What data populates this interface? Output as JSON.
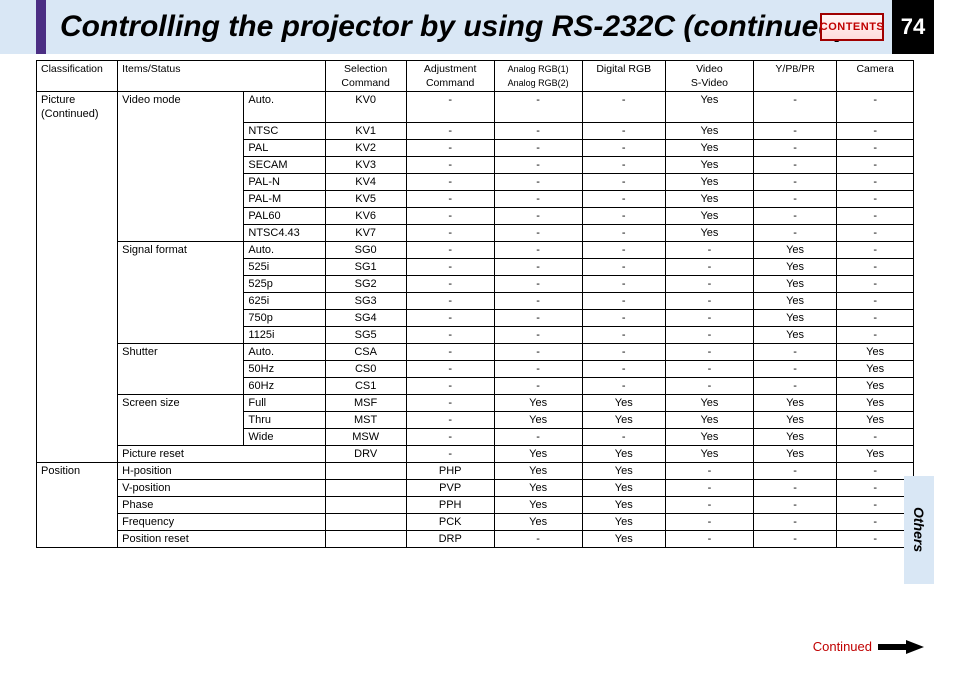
{
  "title": "Controlling the projector by using RS-232C (continued)",
  "contents_btn": "CONTENTS",
  "page_number": "74",
  "side_tab": "Others",
  "continued_label": "Continued",
  "headers": {
    "classification": "Classification",
    "items_status": "Items/Status",
    "selection": "Selection\nCommand",
    "adjustment": "Adjustment\nCommand",
    "analog_rgb": "Analog RGB(1)\nAnalog RGB(2)",
    "digital_rgb": "Digital RGB",
    "video": "Video\nS-Video",
    "ypbpr": "Y/PB/PR",
    "camera": "Camera"
  },
  "classifications": {
    "picture": "Picture\n(Continued)",
    "position": "Position"
  },
  "groups": [
    {
      "item": "Video mode",
      "rows": [
        {
          "status": "Auto.",
          "sel": "KV0",
          "adj": "-",
          "rgb1": "-",
          "drgb": "-",
          "vid": "Yes",
          "ypbpr": "-",
          "cam": "-"
        },
        {
          "status": "NTSC",
          "sel": "KV1",
          "adj": "-",
          "rgb1": "-",
          "drgb": "-",
          "vid": "Yes",
          "ypbpr": "-",
          "cam": "-"
        },
        {
          "status": "PAL",
          "sel": "KV2",
          "adj": "-",
          "rgb1": "-",
          "drgb": "-",
          "vid": "Yes",
          "ypbpr": "-",
          "cam": "-"
        },
        {
          "status": "SECAM",
          "sel": "KV3",
          "adj": "-",
          "rgb1": "-",
          "drgb": "-",
          "vid": "Yes",
          "ypbpr": "-",
          "cam": "-"
        },
        {
          "status": "PAL-N",
          "sel": "KV4",
          "adj": "-",
          "rgb1": "-",
          "drgb": "-",
          "vid": "Yes",
          "ypbpr": "-",
          "cam": "-"
        },
        {
          "status": "PAL-M",
          "sel": "KV5",
          "adj": "-",
          "rgb1": "-",
          "drgb": "-",
          "vid": "Yes",
          "ypbpr": "-",
          "cam": "-"
        },
        {
          "status": "PAL60",
          "sel": "KV6",
          "adj": "-",
          "rgb1": "-",
          "drgb": "-",
          "vid": "Yes",
          "ypbpr": "-",
          "cam": "-"
        },
        {
          "status": "NTSC4.43",
          "sel": "KV7",
          "adj": "-",
          "rgb1": "-",
          "drgb": "-",
          "vid": "Yes",
          "ypbpr": "-",
          "cam": "-"
        }
      ]
    },
    {
      "item": "Signal format",
      "rows": [
        {
          "status": "Auto.",
          "sel": "SG0",
          "adj": "-",
          "rgb1": "-",
          "drgb": "-",
          "vid": "-",
          "ypbpr": "Yes",
          "cam": "-"
        },
        {
          "status": "525i",
          "sel": "SG1",
          "adj": "-",
          "rgb1": "-",
          "drgb": "-",
          "vid": "-",
          "ypbpr": "Yes",
          "cam": "-"
        },
        {
          "status": "525p",
          "sel": "SG2",
          "adj": "-",
          "rgb1": "-",
          "drgb": "-",
          "vid": "-",
          "ypbpr": "Yes",
          "cam": "-"
        },
        {
          "status": "625i",
          "sel": "SG3",
          "adj": "-",
          "rgb1": "-",
          "drgb": "-",
          "vid": "-",
          "ypbpr": "Yes",
          "cam": "-"
        },
        {
          "status": "750p",
          "sel": "SG4",
          "adj": "-",
          "rgb1": "-",
          "drgb": "-",
          "vid": "-",
          "ypbpr": "Yes",
          "cam": "-"
        },
        {
          "status": "1125i",
          "sel": "SG5",
          "adj": "-",
          "rgb1": "-",
          "drgb": "-",
          "vid": "-",
          "ypbpr": "Yes",
          "cam": "-"
        }
      ]
    },
    {
      "item": "Shutter",
      "rows": [
        {
          "status": "Auto.",
          "sel": "CSA",
          "adj": "-",
          "rgb1": "-",
          "drgb": "-",
          "vid": "-",
          "ypbpr": "-",
          "cam": "Yes"
        },
        {
          "status": "50Hz",
          "sel": "CS0",
          "adj": "-",
          "rgb1": "-",
          "drgb": "-",
          "vid": "-",
          "ypbpr": "-",
          "cam": "Yes"
        },
        {
          "status": "60Hz",
          "sel": "CS1",
          "adj": "-",
          "rgb1": "-",
          "drgb": "-",
          "vid": "-",
          "ypbpr": "-",
          "cam": "Yes"
        }
      ]
    },
    {
      "item": "Screen size",
      "rows": [
        {
          "status": "Full",
          "sel": "MSF",
          "adj": "-",
          "rgb1": "Yes",
          "drgb": "Yes",
          "vid": "Yes",
          "ypbpr": "Yes",
          "cam": "Yes"
        },
        {
          "status": "Thru",
          "sel": "MST",
          "adj": "-",
          "rgb1": "Yes",
          "drgb": "Yes",
          "vid": "Yes",
          "ypbpr": "Yes",
          "cam": "Yes"
        },
        {
          "status": "Wide",
          "sel": "MSW",
          "adj": "-",
          "rgb1": "-",
          "drgb": "-",
          "vid": "Yes",
          "ypbpr": "Yes",
          "cam": "-"
        }
      ]
    },
    {
      "item": "Picture reset",
      "rows": [
        {
          "status": "",
          "sel": "DRV",
          "adj": "-",
          "rgb1": "Yes",
          "drgb": "Yes",
          "vid": "Yes",
          "ypbpr": "Yes",
          "cam": "Yes"
        }
      ]
    }
  ],
  "position_rows": [
    {
      "item": "H-position",
      "status": "",
      "sel": "",
      "adj": "PHP",
      "rgb1": "Yes",
      "drgb": "Yes",
      "vid": "-",
      "ypbpr": "-",
      "cam": "-",
      "extra": "-"
    },
    {
      "item": "V-position",
      "status": "",
      "sel": "",
      "adj": "PVP",
      "rgb1": "Yes",
      "drgb": "Yes",
      "vid": "-",
      "ypbpr": "-",
      "cam": "-",
      "extra": "-"
    },
    {
      "item": "Phase",
      "status": "",
      "sel": "",
      "adj": "PPH",
      "rgb1": "Yes",
      "drgb": "Yes",
      "vid": "-",
      "ypbpr": "-",
      "cam": "-",
      "extra": "-"
    },
    {
      "item": "Frequency",
      "status": "",
      "sel": "",
      "adj": "PCK",
      "rgb1": "Yes",
      "drgb": "Yes",
      "vid": "-",
      "ypbpr": "-",
      "cam": "-",
      "extra": "-"
    },
    {
      "item": "Position reset",
      "status": "",
      "sel": "",
      "adj": "DRP",
      "rgb1": "-",
      "drgb": "Yes",
      "vid": "-",
      "ypbpr": "-",
      "cam": "-",
      "extra": "-"
    }
  ]
}
